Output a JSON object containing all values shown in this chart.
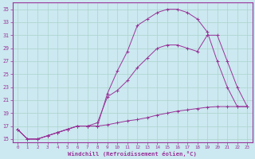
{
  "xlabel": "Windchill (Refroidissement éolien,°C)",
  "bg_color": "#cce8f0",
  "grid_color": "#aad4cc",
  "line_color": "#993399",
  "xlim": [
    -0.5,
    23.5
  ],
  "ylim": [
    14.5,
    36.0
  ],
  "xticks": [
    0,
    1,
    2,
    3,
    4,
    5,
    6,
    7,
    8,
    9,
    10,
    11,
    12,
    13,
    14,
    15,
    16,
    17,
    18,
    19,
    20,
    21,
    22,
    23
  ],
  "yticks": [
    15,
    17,
    19,
    21,
    23,
    25,
    27,
    29,
    31,
    33,
    35
  ],
  "line1_x": [
    0,
    1,
    2,
    3,
    4,
    5,
    6,
    7,
    8,
    9,
    10,
    11,
    12,
    13,
    14,
    15,
    16,
    17,
    18,
    19,
    20,
    21,
    22,
    23
  ],
  "line1_y": [
    16.5,
    15.0,
    15.0,
    15.5,
    16.0,
    16.5,
    17.0,
    17.0,
    17.0,
    17.2,
    17.5,
    17.8,
    18.0,
    18.3,
    18.7,
    19.0,
    19.3,
    19.5,
    19.7,
    19.9,
    20.0,
    20.0,
    20.0,
    20.0
  ],
  "line2_x": [
    0,
    1,
    2,
    3,
    4,
    5,
    6,
    7,
    8,
    9,
    10,
    11,
    12,
    13,
    14,
    15,
    16,
    17,
    18,
    19,
    20,
    21,
    22,
    23
  ],
  "line2_y": [
    16.5,
    15.0,
    15.0,
    15.5,
    16.0,
    16.5,
    17.0,
    17.0,
    17.0,
    22.0,
    25.5,
    28.5,
    32.5,
    33.5,
    34.5,
    35.0,
    35.0,
    34.5,
    33.5,
    31.5,
    27.0,
    23.0,
    20.0,
    20.0
  ],
  "line3_x": [
    0,
    1,
    2,
    3,
    4,
    5,
    6,
    7,
    8,
    9,
    10,
    11,
    12,
    13,
    14,
    15,
    16,
    17,
    18,
    19,
    20,
    21,
    22,
    23
  ],
  "line3_y": [
    16.5,
    15.0,
    15.0,
    15.5,
    16.0,
    16.5,
    17.0,
    17.0,
    17.5,
    21.5,
    22.5,
    24.0,
    26.0,
    27.5,
    29.0,
    29.5,
    29.5,
    29.0,
    28.5,
    31.0,
    31.0,
    27.0,
    23.0,
    20.0
  ]
}
